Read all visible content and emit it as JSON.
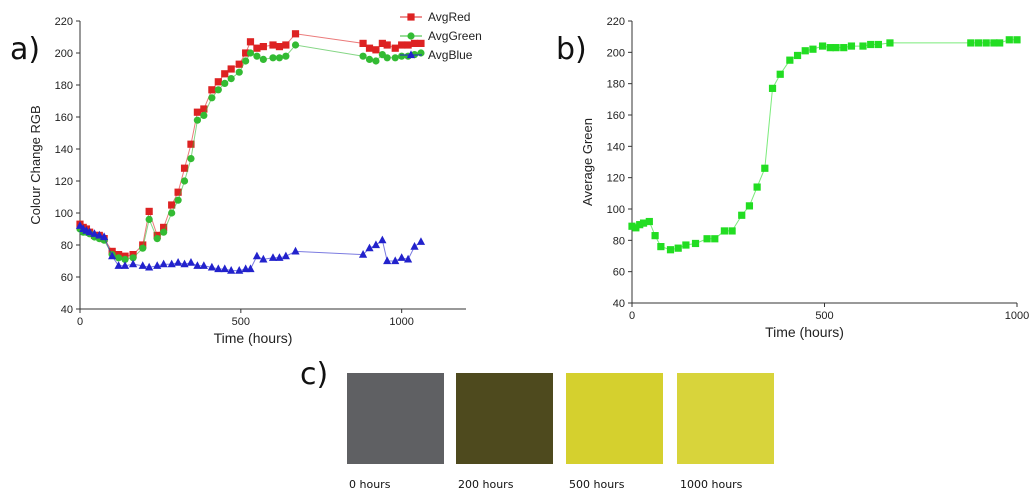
{
  "panels": {
    "a": "a)",
    "b": "b)",
    "c": "c)"
  },
  "chart_data": [
    {
      "id": "a",
      "type": "line",
      "xlabel": "Time (hours)",
      "ylabel": "Colour Change RGB",
      "xlim": [
        0,
        1200
      ],
      "ylim": [
        40,
        220
      ],
      "xticks": [
        0,
        500,
        1000
      ],
      "yticks": [
        40,
        60,
        80,
        100,
        120,
        140,
        160,
        180,
        200,
        220
      ],
      "grid": false,
      "legend": "top-center",
      "series": [
        {
          "name": "AvgRed",
          "color": "#dd2222",
          "marker": "square",
          "x": [
            0,
            10,
            20,
            30,
            45,
            60,
            75,
            100,
            120,
            140,
            165,
            195,
            215,
            240,
            260,
            285,
            305,
            325,
            345,
            365,
            385,
            410,
            430,
            450,
            470,
            495,
            515,
            530,
            550,
            570,
            600,
            620,
            640,
            670,
            880,
            900,
            920,
            940,
            955,
            980,
            1000,
            1020,
            1040,
            1060
          ],
          "y": [
            93,
            91,
            90,
            88,
            86,
            86,
            84,
            76,
            74,
            73,
            74,
            80,
            101,
            86,
            91,
            105,
            113,
            128,
            143,
            163,
            165,
            177,
            182,
            187,
            190,
            193,
            200,
            207,
            203,
            204,
            205,
            204,
            205,
            212,
            206,
            203,
            202,
            206,
            205,
            203,
            205,
            205,
            206,
            206
          ]
        },
        {
          "name": "AvgGreen",
          "color": "#33bb33",
          "marker": "circle",
          "x": [
            0,
            10,
            20,
            30,
            45,
            60,
            75,
            100,
            120,
            140,
            165,
            195,
            215,
            240,
            260,
            285,
            305,
            325,
            345,
            365,
            385,
            410,
            430,
            450,
            470,
            495,
            515,
            530,
            550,
            570,
            600,
            620,
            640,
            670,
            880,
            900,
            920,
            940,
            955,
            980,
            1000,
            1020,
            1040,
            1060
          ],
          "y": [
            90,
            88,
            88,
            87,
            85,
            84,
            83,
            74,
            72,
            71,
            72,
            78,
            96,
            84,
            88,
            100,
            108,
            120,
            134,
            158,
            161,
            172,
            177,
            181,
            184,
            188,
            195,
            200,
            198,
            196,
            197,
            197,
            198,
            205,
            198,
            196,
            195,
            199,
            197,
            197,
            198,
            198,
            199,
            200
          ]
        },
        {
          "name": "AvgBlue",
          "color": "#2222cc",
          "marker": "triangle",
          "x": [
            0,
            10,
            20,
            30,
            45,
            60,
            75,
            100,
            120,
            140,
            165,
            195,
            215,
            240,
            260,
            285,
            305,
            325,
            345,
            365,
            385,
            410,
            430,
            450,
            470,
            495,
            515,
            530,
            550,
            570,
            600,
            620,
            640,
            670,
            880,
            900,
            920,
            940,
            955,
            980,
            1000,
            1020,
            1040,
            1060
          ],
          "y": [
            92,
            90,
            89,
            88,
            87,
            86,
            85,
            73,
            67,
            67,
            68,
            67,
            66,
            67,
            68,
            68,
            69,
            68,
            69,
            67,
            67,
            66,
            65,
            65,
            64,
            64,
            65,
            65,
            73,
            71,
            72,
            72,
            73,
            76,
            74,
            78,
            80,
            83,
            70,
            70,
            72,
            71,
            79,
            82
          ]
        }
      ]
    },
    {
      "id": "b",
      "type": "line",
      "xlabel": "Time (hours)",
      "ylabel": "Average Green",
      "xlim": [
        0,
        1000
      ],
      "ylim": [
        40,
        220
      ],
      "xticks": [
        0,
        500,
        1000
      ],
      "yticks": [
        40,
        60,
        80,
        100,
        120,
        140,
        160,
        180,
        200,
        220
      ],
      "grid": false,
      "series": [
        {
          "color": "#22dd22",
          "marker": "square",
          "x": [
            0,
            10,
            20,
            30,
            45,
            60,
            75,
            100,
            120,
            140,
            165,
            195,
            215,
            240,
            260,
            285,
            305,
            325,
            345,
            365,
            385,
            410,
            430,
            450,
            470,
            495,
            515,
            530,
            550,
            570,
            600,
            620,
            640,
            670,
            880,
            900,
            920,
            940,
            955,
            980,
            1000
          ],
          "y": [
            89,
            88,
            90,
            91,
            92,
            83,
            76,
            74,
            75,
            77,
            78,
            81,
            81,
            86,
            86,
            96,
            102,
            114,
            126,
            177,
            186,
            195,
            198,
            201,
            202,
            204,
            203,
            203,
            203,
            204,
            204,
            205,
            205,
            206,
            206,
            206,
            206,
            206,
            206,
            208,
            208
          ]
        }
      ]
    }
  ],
  "photos": [
    {
      "label": "0 hours",
      "color": "#5f6063"
    },
    {
      "label": "200 hours",
      "color": "#4e4a1e"
    },
    {
      "label": "500 hours",
      "color": "#d5d02e"
    },
    {
      "label": "1000 hours",
      "color": "#d8d43b"
    }
  ]
}
